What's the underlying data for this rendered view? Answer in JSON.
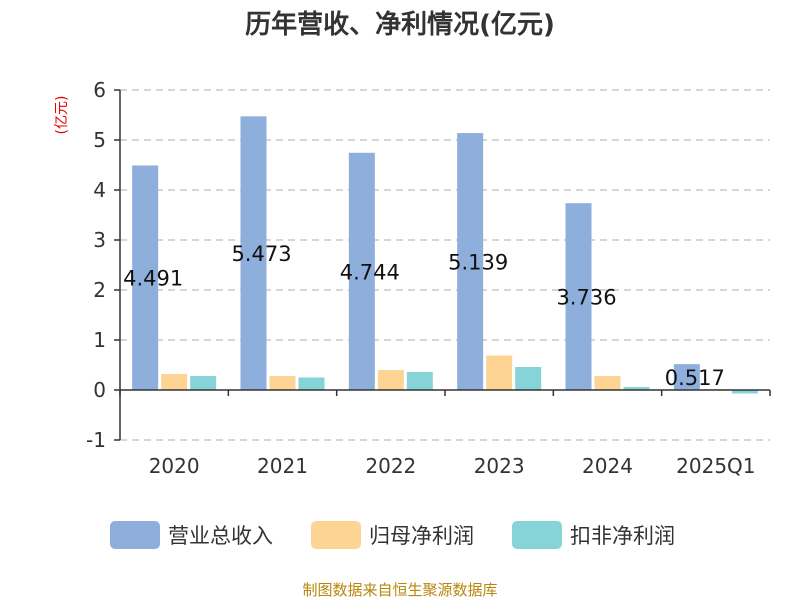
{
  "chart_data": {
    "type": "bar",
    "title": "历年营收、净利情况(亿元)",
    "ylabel": "(亿元)",
    "categories": [
      "2020",
      "2021",
      "2022",
      "2023",
      "2024",
      "2025Q1"
    ],
    "ylim": [
      -1,
      6
    ],
    "yticks": [
      "-1",
      "0",
      "1",
      "2",
      "3",
      "4",
      "5",
      "6"
    ],
    "grid": true,
    "legend": "bottom",
    "series": [
      {
        "name": "营业总收入",
        "color": "#8eaedc",
        "values": [
          4.491,
          5.473,
          4.744,
          5.139,
          3.736,
          0.517
        ],
        "labels": [
          "4.491",
          "5.473",
          "4.744",
          "5.139",
          "3.736",
          "0.517"
        ]
      },
      {
        "name": "归母净利润",
        "color": "#fdd493",
        "values": [
          0.32,
          0.28,
          0.4,
          0.69,
          0.28,
          0.02
        ]
      },
      {
        "name": "扣非净利润",
        "color": "#86d4d8",
        "values": [
          0.28,
          0.25,
          0.36,
          0.46,
          0.06,
          -0.07
        ]
      }
    ],
    "source": "制图数据来自恒生聚源数据库"
  }
}
